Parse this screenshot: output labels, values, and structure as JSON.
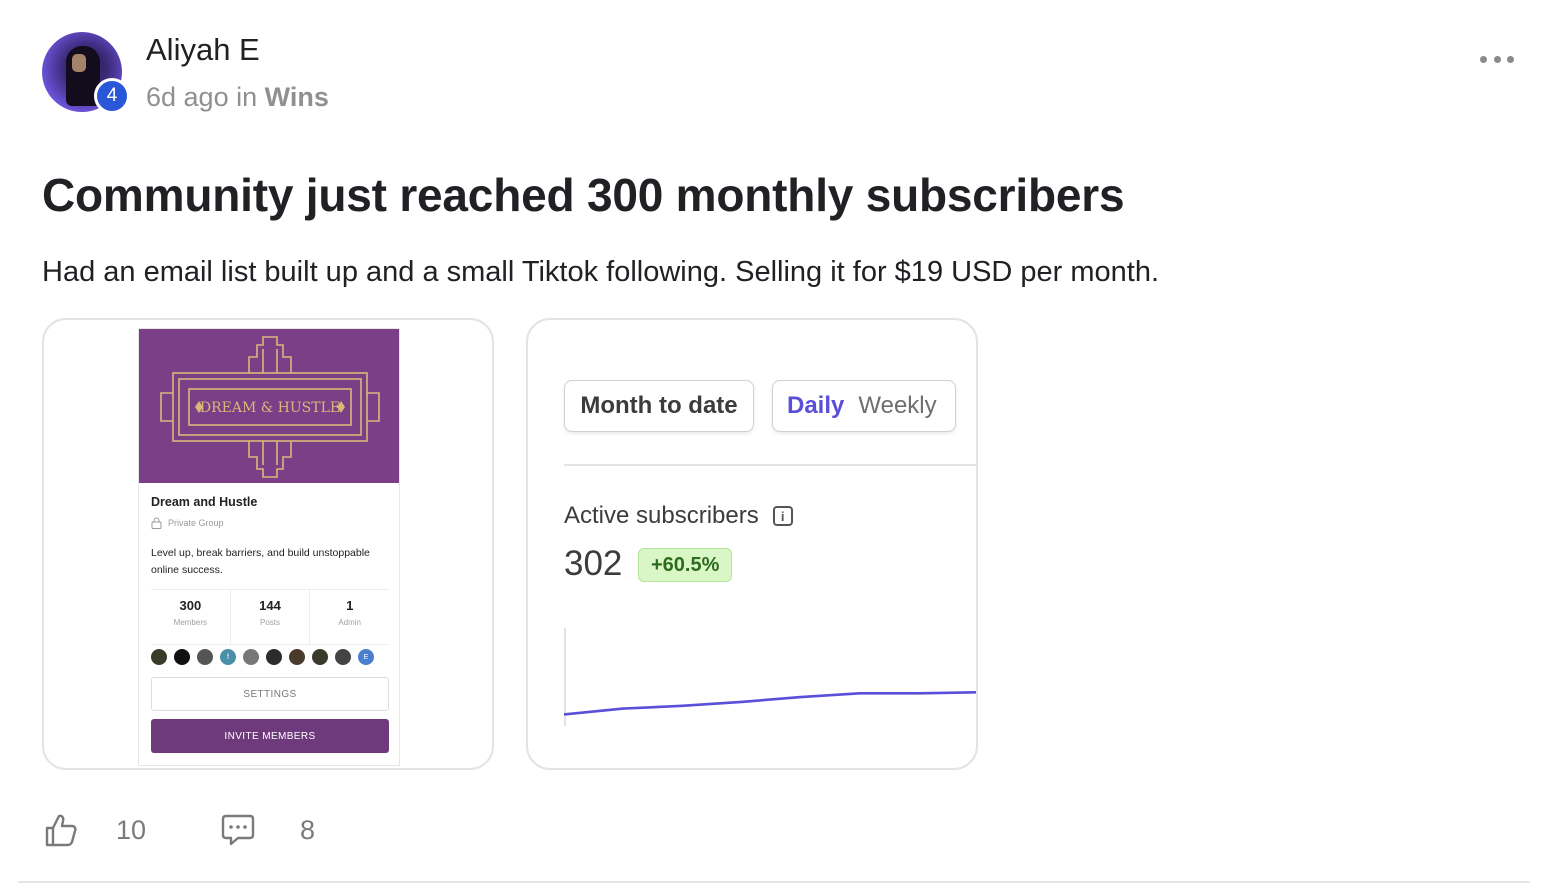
{
  "post": {
    "author": "Aliyah E",
    "level": "4",
    "time_ago": "6d ago",
    "in_word": "in",
    "category": "Wins",
    "title": "Community just reached 300 monthly subscribers",
    "body": "Had an email list built up and a small Tiktok following. Selling it for $19 USD per month."
  },
  "group_card": {
    "banner_text": "DREAM & HUSTLE",
    "banner_color": "#7a3f86",
    "name": "Dream and Hustle",
    "privacy": "Private Group",
    "description": "Level up, break barriers, and build unstoppable online success.",
    "stats": [
      {
        "num": "300",
        "label": "Members"
      },
      {
        "num": "144",
        "label": "Posts"
      },
      {
        "num": "1",
        "label": "Admin"
      }
    ],
    "member_avatar_letters": [
      "",
      "",
      "",
      "f",
      "",
      "",
      "",
      "",
      "",
      "E"
    ],
    "settings_label": "SETTINGS",
    "invite_label": "INVITE MEMBERS",
    "accent_color": "#6e3a7c"
  },
  "stats_card": {
    "range_label": "Month to date",
    "period_daily": "Daily",
    "period_weekly": "Weekly",
    "metric_label": "Active subscribers",
    "metric_value": "302",
    "metric_delta": "+60.5%",
    "line_color": "#5a4fd8"
  },
  "actions": {
    "likes": "10",
    "comments": "8"
  },
  "chart_data": {
    "type": "line",
    "title": "",
    "xlabel": "",
    "ylabel": "",
    "x": [
      0,
      1,
      2,
      3,
      4,
      5,
      6,
      7
    ],
    "values": [
      10,
      16,
      19,
      23,
      28,
      32,
      32,
      33
    ],
    "ylim": [
      0,
      100
    ],
    "grid": false
  }
}
